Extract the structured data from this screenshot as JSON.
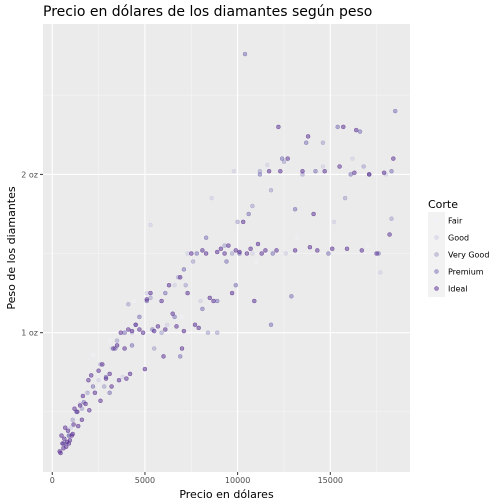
{
  "chart_data": {
    "type": "scatter",
    "title": "Precio en dólares de los diamantes según peso",
    "xlabel": "Precio en dólares",
    "ylabel": "Peso de los diamantes",
    "x_ticks": [
      0,
      5000,
      10000,
      15000
    ],
    "x_tick_labels": [
      "0",
      "5000",
      "10000",
      "15000"
    ],
    "y_ticks": [
      1,
      2
    ],
    "y_tick_labels": [
      "1 oz",
      "2 oz"
    ],
    "xlim": [
      -500,
      19300
    ],
    "ylim": [
      0.12,
      2.95
    ],
    "grid": true,
    "legend": {
      "title": "Corte",
      "position": "right",
      "entries": [
        {
          "name": "Fair",
          "color": "#f2f0f7",
          "opacity": 0.5
        },
        {
          "name": "Good",
          "color": "#cbc9e2",
          "opacity": 0.5
        },
        {
          "name": "Very Good",
          "color": "#9e9ac8",
          "opacity": 0.5
        },
        {
          "name": "Premium",
          "color": "#756bb1",
          "opacity": 0.5
        },
        {
          "name": "Ideal",
          "color": "#54278f",
          "opacity": 0.5
        }
      ]
    },
    "series": [
      {
        "name": "Fair",
        "points": [
          [
            2200,
            0.86
          ],
          [
            3100,
            0.95
          ],
          [
            3900,
            1.0
          ],
          [
            5600,
            1.02
          ],
          [
            7000,
            1.1
          ],
          [
            9200,
            1.5
          ],
          [
            11000,
            1.45
          ],
          [
            13200,
            1.6
          ],
          [
            17000,
            1.55
          ],
          [
            2600,
            0.7
          ],
          [
            4400,
            1.2
          ],
          [
            8200,
            1.6
          ]
        ]
      },
      {
        "name": "Good",
        "points": [
          [
            1500,
            0.55
          ],
          [
            2500,
            0.7
          ],
          [
            3200,
            0.9
          ],
          [
            4300,
            1.0
          ],
          [
            5100,
            1.25
          ],
          [
            5300,
            1.68
          ],
          [
            6600,
            1.3
          ],
          [
            7300,
            1.5
          ],
          [
            8600,
            1.85
          ],
          [
            9800,
            2.02
          ],
          [
            11600,
            2.06
          ],
          [
            12600,
            1.5
          ],
          [
            14600,
            2.05
          ],
          [
            16200,
            2.1
          ],
          [
            17700,
            1.38
          ],
          [
            1000,
            0.4
          ],
          [
            3800,
            0.72
          ],
          [
            6200,
            1.05
          ],
          [
            8000,
            1.2
          ],
          [
            10800,
            1.5
          ],
          [
            15200,
            1.7
          ],
          [
            18000,
            2.0
          ]
        ]
      },
      {
        "name": "Very Good",
        "points": [
          [
            700,
            0.3
          ],
          [
            1100,
            0.45
          ],
          [
            1900,
            0.62
          ],
          [
            2600,
            0.8
          ],
          [
            3500,
            0.95
          ],
          [
            4500,
            1.05
          ],
          [
            5300,
            1.22
          ],
          [
            5900,
            1.0
          ],
          [
            6800,
            1.35
          ],
          [
            7600,
            1.45
          ],
          [
            8400,
            1.0
          ],
          [
            9300,
            1.55
          ],
          [
            10000,
            1.7
          ],
          [
            10800,
            1.8
          ],
          [
            11800,
            1.9
          ],
          [
            12500,
            2.08
          ],
          [
            13500,
            2.0
          ],
          [
            14600,
            2.2
          ],
          [
            15800,
            1.85
          ],
          [
            16800,
            2.05
          ],
          [
            18300,
            1.72
          ],
          [
            900,
            0.35
          ],
          [
            1600,
            0.52
          ],
          [
            2800,
            0.66
          ],
          [
            4100,
            1.18
          ],
          [
            5500,
            0.9
          ],
          [
            7200,
            1.3
          ],
          [
            8900,
            1.0
          ],
          [
            9700,
            1.5
          ],
          [
            11200,
            2.02
          ]
        ]
      },
      {
        "name": "Premium",
        "points": [
          [
            600,
            0.3
          ],
          [
            900,
            0.35
          ],
          [
            1300,
            0.5
          ],
          [
            1700,
            0.56
          ],
          [
            2200,
            0.66
          ],
          [
            2900,
            0.72
          ],
          [
            3400,
            0.9
          ],
          [
            3900,
            1.0
          ],
          [
            4700,
            1.1
          ],
          [
            5100,
            1.2
          ],
          [
            5400,
            1.02
          ],
          [
            6100,
            1.25
          ],
          [
            6600,
            1.1
          ],
          [
            7100,
            1.4
          ],
          [
            7800,
            1.5
          ],
          [
            8300,
            1.6
          ],
          [
            8900,
            1.2
          ],
          [
            9400,
            1.45
          ],
          [
            10100,
            1.5
          ],
          [
            10600,
            1.75
          ],
          [
            11200,
            2.0
          ],
          [
            11900,
            1.5
          ],
          [
            12400,
            2.1
          ],
          [
            13100,
            1.78
          ],
          [
            13700,
            2.2
          ],
          [
            14200,
            2.02
          ],
          [
            14900,
            1.5
          ],
          [
            15400,
            2.3
          ],
          [
            16100,
            2.0
          ],
          [
            16600,
            2.27
          ],
          [
            17100,
            2.0
          ],
          [
            17600,
            1.5
          ],
          [
            18300,
            2.02
          ],
          [
            18500,
            2.4
          ],
          [
            10400,
            2.76
          ],
          [
            12900,
            1.23
          ],
          [
            11800,
            1.05
          ],
          [
            3100,
            0.62
          ],
          [
            4300,
            0.92
          ],
          [
            6900,
            0.85
          ],
          [
            8100,
            1.15
          ],
          [
            9900,
            1.3
          ]
        ]
      },
      {
        "name": "Ideal",
        "points": [
          [
            400,
            0.25
          ],
          [
            550,
            0.3
          ],
          [
            650,
            0.33
          ],
          [
            750,
            0.28
          ],
          [
            850,
            0.38
          ],
          [
            950,
            0.32
          ],
          [
            1050,
            0.35
          ],
          [
            1150,
            0.42
          ],
          [
            500,
            0.35
          ],
          [
            700,
            0.4
          ],
          [
            900,
            0.3
          ],
          [
            1200,
            0.52
          ],
          [
            1350,
            0.5
          ],
          [
            1500,
            0.54
          ],
          [
            1650,
            0.6
          ],
          [
            1800,
            0.55
          ],
          [
            1950,
            0.7
          ],
          [
            2100,
            0.73
          ],
          [
            2300,
            0.62
          ],
          [
            2500,
            0.76
          ],
          [
            2700,
            0.8
          ],
          [
            2900,
            0.71
          ],
          [
            3100,
            0.74
          ],
          [
            3300,
            0.9
          ],
          [
            3500,
            0.92
          ],
          [
            3700,
            1.0
          ],
          [
            3900,
            0.9
          ],
          [
            4100,
            1.02
          ],
          [
            4300,
            1.01
          ],
          [
            4500,
            1.05
          ],
          [
            4700,
            1.02
          ],
          [
            4900,
            1.0
          ],
          [
            5100,
            1.21
          ],
          [
            5300,
            1.25
          ],
          [
            5500,
            1.01
          ],
          [
            5700,
            1.04
          ],
          [
            5900,
            1.2
          ],
          [
            6100,
            1.02
          ],
          [
            6300,
            1.3
          ],
          [
            6500,
            1.12
          ],
          [
            6700,
            1.04
          ],
          [
            6900,
            1.35
          ],
          [
            7100,
            1.01
          ],
          [
            7300,
            1.25
          ],
          [
            7500,
            1.5
          ],
          [
            7700,
            1.05
          ],
          [
            7900,
            1.03
          ],
          [
            8100,
            1.52
          ],
          [
            8300,
            1.5
          ],
          [
            8500,
            1.22
          ],
          [
            8700,
            1.2
          ],
          [
            8900,
            1.51
          ],
          [
            9100,
            1.53
          ],
          [
            9300,
            1.5
          ],
          [
            9500,
            1.55
          ],
          [
            9700,
            1.25
          ],
          [
            9900,
            1.52
          ],
          [
            10100,
            1.51
          ],
          [
            10300,
            1.7
          ],
          [
            10500,
            1.5
          ],
          [
            10700,
            1.53
          ],
          [
            10900,
            1.2
          ],
          [
            11100,
            1.56
          ],
          [
            11300,
            1.5
          ],
          [
            11500,
            1.52
          ],
          [
            11700,
            2.02
          ],
          [
            12100,
            1.52
          ],
          [
            12300,
            2.02
          ],
          [
            12700,
            2.1
          ],
          [
            13100,
            1.52
          ],
          [
            13500,
            2.02
          ],
          [
            13900,
            1.54
          ],
          [
            14300,
            1.52
          ],
          [
            14700,
            2.02
          ],
          [
            15100,
            1.53
          ],
          [
            15500,
            2.05
          ],
          [
            15900,
            1.53
          ],
          [
            16300,
            2.01
          ],
          [
            16700,
            1.52
          ],
          [
            17100,
            2.0
          ],
          [
            17500,
            1.5
          ],
          [
            17900,
            2.01
          ],
          [
            18200,
            1.62
          ],
          [
            4000,
            0.71
          ],
          [
            4200,
            0.74
          ],
          [
            3600,
            0.7
          ],
          [
            3200,
            0.66
          ],
          [
            2600,
            0.57
          ],
          [
            2000,
            0.51
          ],
          [
            1600,
            0.45
          ],
          [
            1400,
            0.41
          ],
          [
            1100,
            0.36
          ],
          [
            800,
            0.31
          ],
          [
            600,
            0.27
          ],
          [
            450,
            0.24
          ],
          [
            6000,
            0.85
          ],
          [
            7000,
            0.9
          ],
          [
            5000,
            0.77
          ],
          [
            14100,
            1.75
          ],
          [
            12200,
            2.3
          ],
          [
            13800,
            2.24
          ],
          [
            15700,
            2.3
          ],
          [
            16400,
            2.28
          ],
          [
            18400,
            2.1
          ]
        ]
      }
    ]
  }
}
